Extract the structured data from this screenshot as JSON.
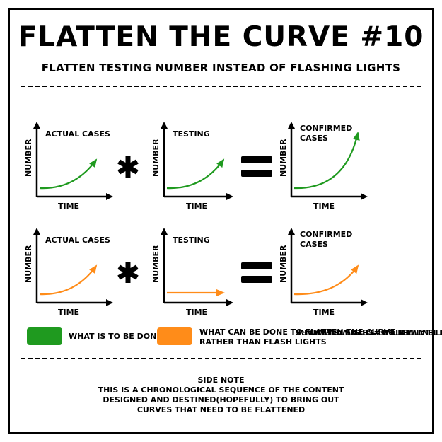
{
  "header": {
    "title": "FLATTEN THE CURVE #10",
    "subtitle": "FLATTEN TESTING NUMBER INSTEAD OF FLASHING LIGHTS"
  },
  "rows": [
    {
      "panels": [
        {
          "label1": "ACTUAL CASES",
          "label2": "",
          "ylabel": "NUMBER",
          "xlabel": "TIME",
          "shape": "rising",
          "color": "green"
        },
        {
          "label1": "TESTING",
          "label2": "",
          "ylabel": "NUMBER",
          "xlabel": "TIME",
          "shape": "rising",
          "color": "green"
        },
        {
          "label1": "CONFIRMED",
          "label2": "CASES",
          "ylabel": "NUMBER",
          "xlabel": "TIME",
          "shape": "steep",
          "color": "green"
        }
      ]
    },
    {
      "panels": [
        {
          "label1": "ACTUAL CASES",
          "label2": "",
          "ylabel": "NUMBER",
          "xlabel": "TIME",
          "shape": "rising",
          "color": "orange"
        },
        {
          "label1": "TESTING",
          "label2": "",
          "ylabel": "NUMBER",
          "xlabel": "TIME",
          "shape": "flat",
          "color": "orange"
        },
        {
          "label1": "CONFIRMED",
          "label2": "CASES",
          "ylabel": "NUMBER",
          "xlabel": "TIME",
          "shape": "rising",
          "color": "orange"
        }
      ]
    }
  ],
  "legend": {
    "green_label": "WHAT IS TO BE DONE",
    "orange_label_line1": "WHAT CAN BE DONE TO FLATTEN THE CURVE",
    "orange_label_line2": "RATHER THAN FLASH LIGHTS"
  },
  "watermark": {
    "line1": "DO NOT JUST FLATTEN OUT THIS WATERMARK",
    "line2": "#THECONTENTWRITER #SBENSTEWART"
  },
  "side_note": {
    "heading": "SIDE NOTE",
    "line1": "THIS IS A CHRONOLOGICAL SEQUENCE OF THE CONTENT",
    "line2": "DESIGNED AND DESTINED(HOPEFULLY) TO BRING OUT",
    "line3": "CURVES THAT NEED TO BE FLATTENED"
  },
  "colors": {
    "green": "#1f9a1f",
    "orange": "#ff8c19",
    "ink": "#000000"
  },
  "icons": {
    "multiply": "asterisk-icon",
    "equals": "equals-icon"
  }
}
